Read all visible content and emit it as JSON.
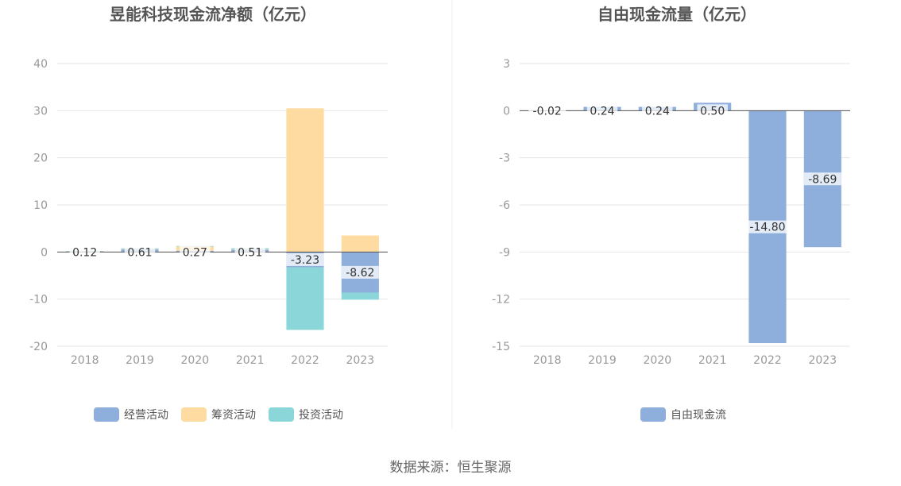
{
  "source_prefix": "数据来源：",
  "source_name": "恒生聚源",
  "chart_data": [
    {
      "type": "bar",
      "title": "昱能科技现金流净额（亿元）",
      "categories": [
        "2018",
        "2019",
        "2020",
        "2021",
        "2022",
        "2023"
      ],
      "ylim": [
        -20,
        40
      ],
      "yticks": [
        40,
        30,
        20,
        10,
        0,
        -10,
        -20
      ],
      "grid": true,
      "legend_position": "bottom",
      "series": [
        {
          "name": "经营活动",
          "color": "#8eaedb",
          "values": [
            0.12,
            0.61,
            0.27,
            0.51,
            -3.23,
            -8.62
          ]
        },
        {
          "name": "筹资活动",
          "color": "#fedba0",
          "values": [
            0.05,
            0.1,
            0.9,
            0.1,
            30.5,
            3.5
          ]
        },
        {
          "name": "投资活动",
          "color": "#8ad6d8",
          "values": [
            0.05,
            0.1,
            0.1,
            0.2,
            -13.3,
            -1.5
          ]
        }
      ],
      "data_labels": [
        "0.12",
        "0.61",
        "0.27",
        "0.51",
        "-3.23",
        "-8.62"
      ]
    },
    {
      "type": "bar",
      "title": "自由现金流量（亿元）",
      "categories": [
        "2018",
        "2019",
        "2020",
        "2021",
        "2022",
        "2023"
      ],
      "ylim": [
        -15,
        3
      ],
      "yticks": [
        3,
        0,
        -3,
        -6,
        -9,
        -12,
        -15
      ],
      "grid": true,
      "legend_position": "bottom",
      "series": [
        {
          "name": "自由现金流",
          "color": "#8eaedb",
          "values": [
            -0.02,
            0.24,
            0.24,
            0.5,
            -14.8,
            -8.69
          ]
        }
      ],
      "data_labels": [
        "-0.02",
        "0.24",
        "0.24",
        "0.50",
        "-14.80",
        "-8.69"
      ]
    }
  ]
}
